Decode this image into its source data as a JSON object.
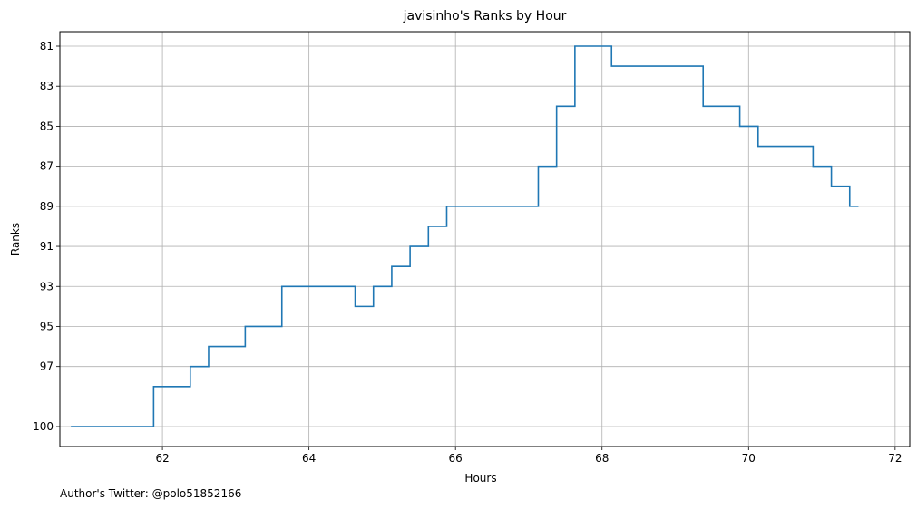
{
  "chart_data": {
    "type": "line",
    "title": "javisinho's Ranks by Hour",
    "xlabel": "Hours",
    "ylabel": "Ranks",
    "xlim": [
      60.6,
      72.2
    ],
    "ylim": [
      81,
      100
    ],
    "y_inverted": true,
    "step": "post",
    "grid": true,
    "x_ticks": [
      62,
      64,
      66,
      68,
      70,
      72
    ],
    "y_ticks": [
      81,
      83,
      85,
      87,
      89,
      91,
      93,
      95,
      97,
      100
    ],
    "series": [
      {
        "color": "#1f77b4",
        "x": [
          60.75,
          61.88,
          62.38,
          62.63,
          63.13,
          63.63,
          64.63,
          64.88,
          65.13,
          65.38,
          65.63,
          65.88,
          67.13,
          67.38,
          67.63,
          68.13,
          69.38,
          69.88,
          70.13,
          70.88,
          71.13,
          71.38,
          71.5
        ],
        "y": [
          100,
          98,
          97,
          96,
          95,
          93,
          94,
          93,
          92,
          91,
          90,
          89,
          87,
          84,
          81,
          82,
          84,
          85,
          86,
          87,
          88,
          89,
          89
        ]
      }
    ]
  },
  "footer": {
    "credit": "Author's Twitter: @polo51852166"
  }
}
